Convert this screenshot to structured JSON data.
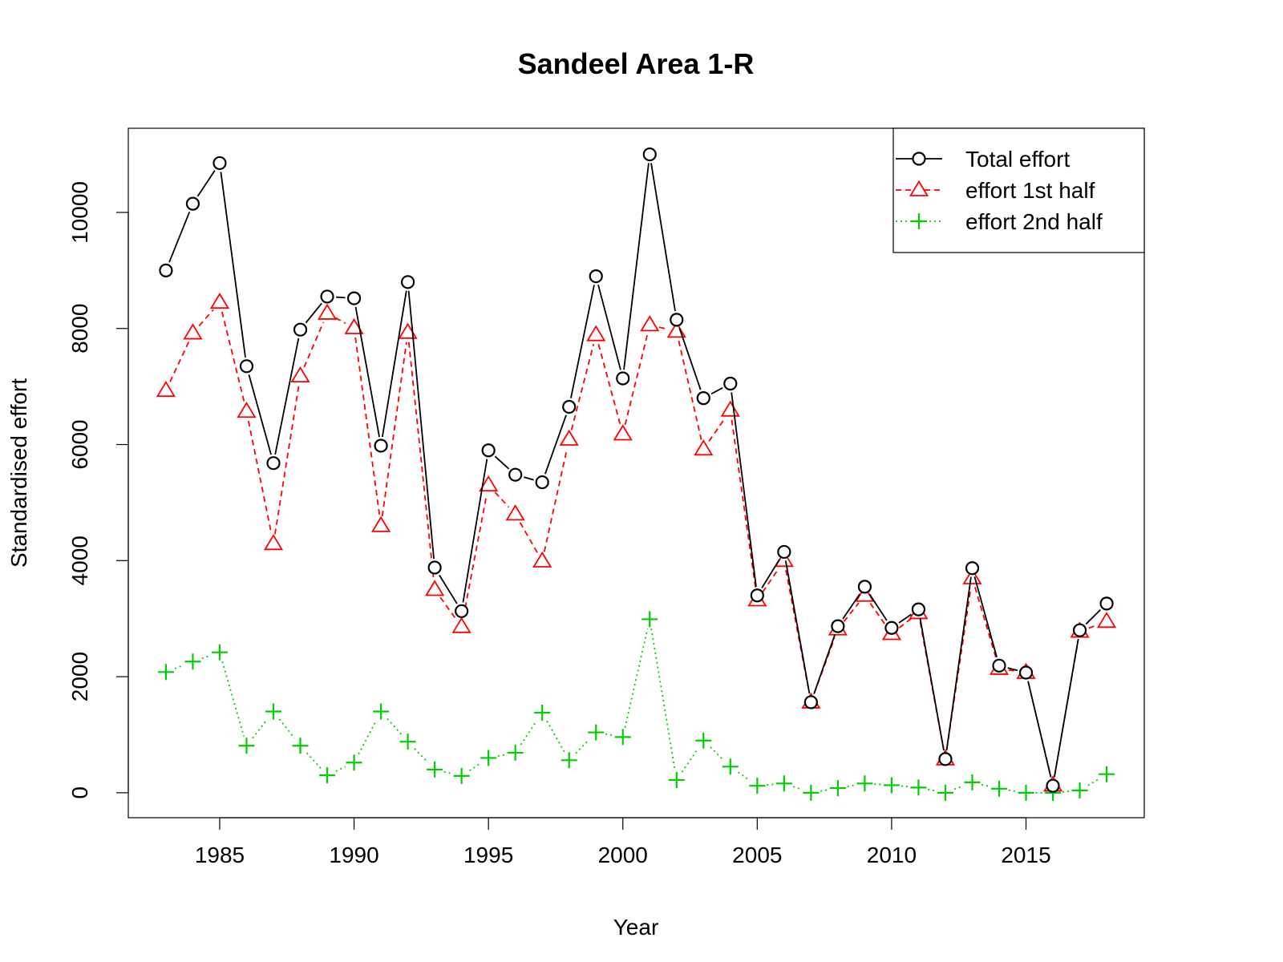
{
  "chart_data": {
    "type": "line",
    "title": "Sandeel Area 1-R",
    "xlabel": "Year",
    "ylabel": "Standardised effort",
    "xlim": [
      1981.6,
      2019.4
    ],
    "ylim": [
      -430,
      11450
    ],
    "x_ticks": [
      1985,
      1990,
      1995,
      2000,
      2005,
      2010,
      2015
    ],
    "y_ticks": [
      0,
      2000,
      4000,
      6000,
      8000,
      10000
    ],
    "grid": false,
    "legend_position": "top-right",
    "x": [
      1983,
      1984,
      1985,
      1986,
      1987,
      1988,
      1989,
      1990,
      1991,
      1992,
      1993,
      1994,
      1995,
      1996,
      1997,
      1998,
      1999,
      2000,
      2001,
      2002,
      2003,
      2004,
      2005,
      2006,
      2007,
      2008,
      2009,
      2010,
      2011,
      2012,
      2013,
      2014,
      2015,
      2016,
      2017,
      2018
    ],
    "series": [
      {
        "name": "Total effort",
        "color": "#000000",
        "marker": "circle",
        "line_style": "solid",
        "values": [
          9000,
          10150,
          10850,
          7350,
          5680,
          7980,
          8550,
          8520,
          5980,
          8800,
          3880,
          3130,
          5900,
          5480,
          5350,
          6650,
          8900,
          7140,
          11000,
          8150,
          6800,
          7050,
          3400,
          4150,
          1560,
          2870,
          3550,
          2840,
          3160,
          580,
          3870,
          2190,
          2070,
          120,
          2800,
          3260
        ]
      },
      {
        "name": "effort 1st half",
        "color": "#FF0000",
        "marker": "triangle",
        "line_style": "dashed",
        "values": [
          6930,
          7920,
          8450,
          6570,
          4290,
          7180,
          8260,
          8010,
          4600,
          7930,
          3500,
          2860,
          5300,
          4800,
          3990,
          6090,
          7890,
          6180,
          8060,
          7950,
          5920,
          6590,
          3320,
          4000,
          1560,
          2820,
          3400,
          2740,
          3100,
          580,
          3700,
          2140,
          2070,
          130,
          2780,
          2950
        ]
      },
      {
        "name": "effort 2nd half",
        "color": "#00CD00",
        "marker": "plus",
        "line_style": "dotted",
        "values": [
          2080,
          2260,
          2420,
          810,
          1400,
          810,
          300,
          520,
          1400,
          880,
          400,
          290,
          600,
          690,
          1380,
          560,
          1040,
          960,
          2990,
          220,
          900,
          450,
          120,
          160,
          0,
          80,
          160,
          130,
          90,
          0,
          180,
          70,
          0,
          0,
          40,
          320
        ]
      }
    ]
  }
}
